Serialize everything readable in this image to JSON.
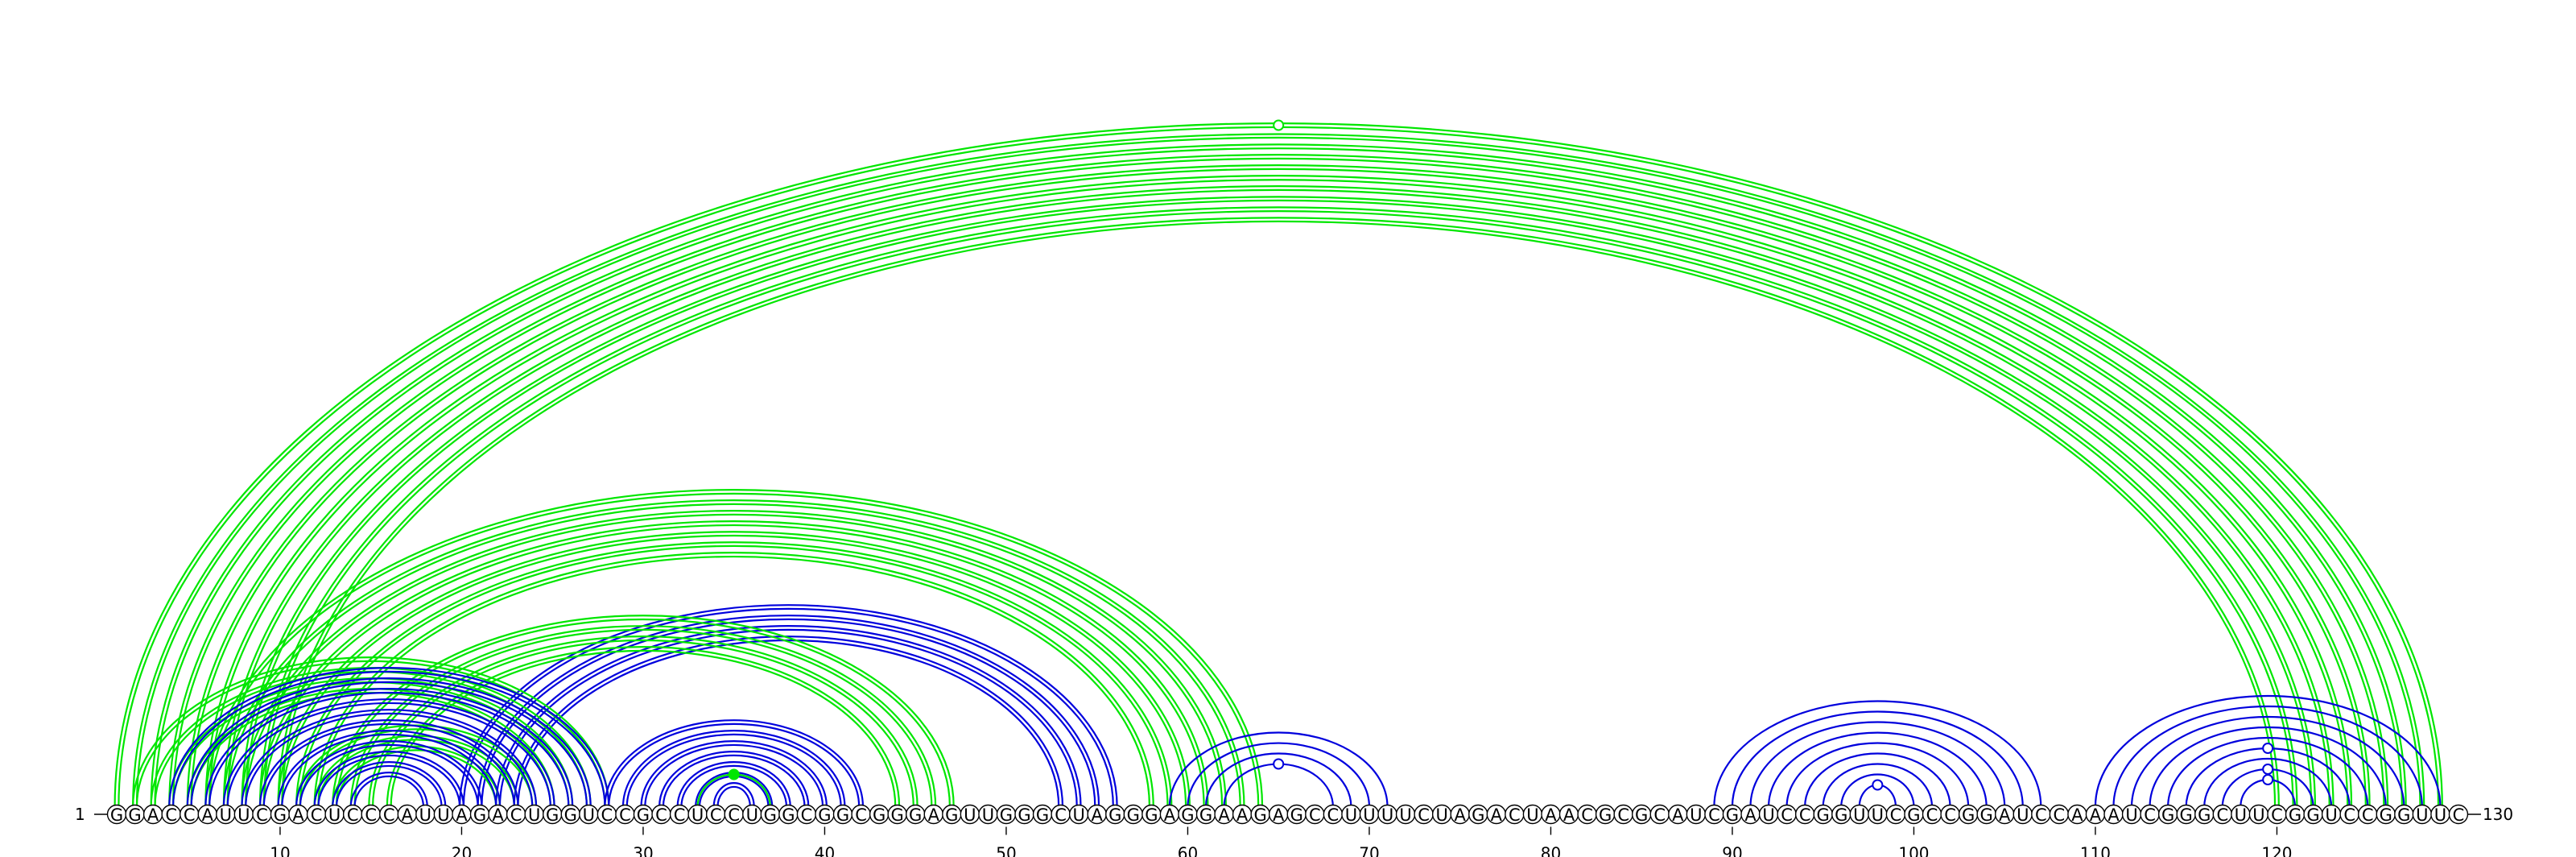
{
  "sequence": "GGACCAUUCGACUCCCAUUAGACUGGUCCGCCUCCUGGCGGCGGGAGUUGGGCUAGGGAGGAAGAGCCUUUUCUAGACUAACGCGCAUCGAUCCGGUUCGCCGGAUCCAAAUCGGGCUUCGGUCCGGUUC",
  "start_label": "1",
  "end_label": "130",
  "tick_labels": [
    "10",
    "20",
    "30",
    "40",
    "50",
    "60",
    "70",
    "80",
    "90",
    "100",
    "110",
    "120"
  ],
  "colors": {
    "green": "#00e600",
    "blue": "#0000dd"
  },
  "arc_groups": [
    {
      "color": "green",
      "lines": 2,
      "pairs": [
        [
          1,
          129
        ],
        [
          2,
          128
        ],
        [
          3,
          127
        ],
        [
          4,
          126
        ],
        [
          5,
          125
        ],
        [
          6,
          124
        ],
        [
          7,
          123
        ],
        [
          8,
          122
        ],
        [
          9,
          121
        ],
        [
          10,
          120
        ]
      ]
    },
    {
      "color": "green",
      "lines": 2,
      "pairs": [
        [
          6,
          64
        ],
        [
          7,
          63
        ],
        [
          8,
          62
        ],
        [
          9,
          61
        ],
        [
          10,
          60
        ],
        [
          11,
          59
        ],
        [
          12,
          58
        ]
      ]
    },
    {
      "color": "blue",
      "lines": 2,
      "pairs": [
        [
          20,
          56
        ],
        [
          21,
          55
        ],
        [
          22,
          54
        ],
        [
          23,
          53
        ]
      ]
    },
    {
      "color": "green",
      "lines": 2,
      "pairs": [
        [
          13,
          47
        ],
        [
          14,
          46
        ],
        [
          15,
          45
        ],
        [
          16,
          44
        ]
      ]
    },
    {
      "color": "green",
      "lines": 2,
      "pairs": [
        [
          2,
          28
        ],
        [
          3,
          27
        ],
        [
          4,
          26
        ],
        [
          5,
          25
        ],
        [
          11,
          24
        ],
        [
          12,
          23
        ],
        [
          13,
          22
        ]
      ]
    },
    {
      "color": "blue",
      "lines": 2,
      "pairs": [
        [
          4,
          28
        ],
        [
          5,
          27
        ],
        [
          6,
          26
        ],
        [
          7,
          25
        ],
        [
          8,
          24
        ],
        [
          9,
          23
        ],
        [
          10,
          22
        ],
        [
          11,
          21
        ],
        [
          12,
          20
        ],
        [
          13,
          19
        ],
        [
          14,
          18
        ]
      ]
    },
    {
      "color": "blue",
      "lines": 2,
      "pairs": [
        [
          28,
          42
        ],
        [
          29,
          41
        ],
        [
          30,
          40
        ],
        [
          31,
          39
        ],
        [
          32,
          38
        ],
        [
          33,
          37
        ],
        [
          34,
          36
        ]
      ]
    },
    {
      "color": "green",
      "lines": 1,
      "pairs": [
        [
          33,
          37
        ]
      ]
    },
    {
      "color": "blue",
      "lines": 1,
      "pairs": [
        [
          59,
          71
        ],
        [
          60,
          70
        ],
        [
          61,
          69
        ],
        [
          62,
          68
        ]
      ]
    },
    {
      "color": "blue",
      "lines": 1,
      "pairs": [
        [
          89,
          107
        ],
        [
          90,
          106
        ],
        [
          91,
          105
        ],
        [
          92,
          104
        ],
        [
          93,
          103
        ],
        [
          94,
          102
        ],
        [
          95,
          101
        ],
        [
          96,
          100
        ],
        [
          97,
          99
        ]
      ]
    },
    {
      "color": "blue",
      "lines": 1,
      "pairs": [
        [
          110,
          129
        ],
        [
          111,
          128
        ],
        [
          112,
          127
        ],
        [
          113,
          126
        ],
        [
          114,
          125
        ],
        [
          115,
          124
        ],
        [
          116,
          123
        ],
        [
          117,
          122
        ],
        [
          118,
          121
        ]
      ]
    }
  ],
  "markers": [
    {
      "pair": [
        1,
        129
      ],
      "color": "green",
      "filled": false
    },
    {
      "pair": [
        33,
        37
      ],
      "color": "green",
      "filled": true
    },
    {
      "pair": [
        62,
        68
      ],
      "color": "blue",
      "filled": false
    },
    {
      "pair": [
        97,
        99
      ],
      "color": "blue",
      "filled": false
    },
    {
      "pair": [
        118,
        121
      ],
      "color": "blue",
      "filled": false
    },
    {
      "pair": [
        117,
        122
      ],
      "color": "blue",
      "filled": false
    },
    {
      "pair": [
        115,
        124
      ],
      "color": "blue",
      "filled": false
    }
  ]
}
